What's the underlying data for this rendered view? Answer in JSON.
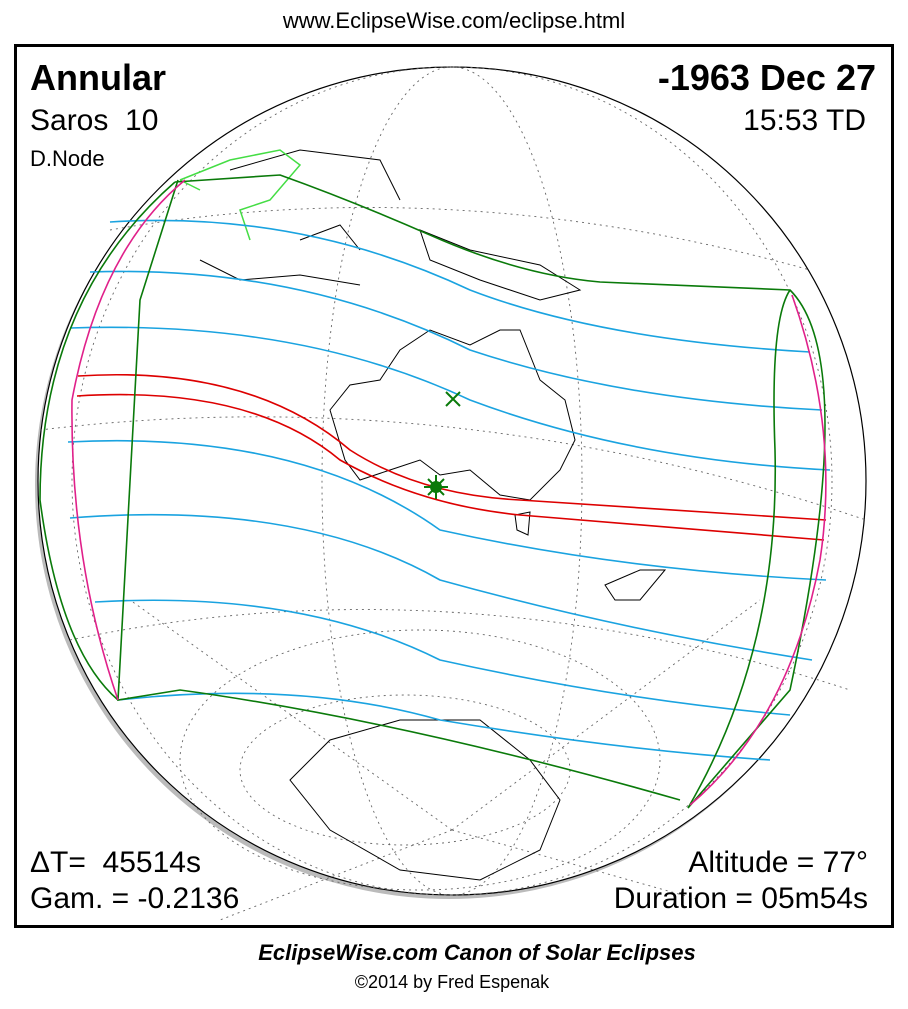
{
  "header": {
    "url": "www.EclipseWise.com/eclipse.html"
  },
  "eclipse": {
    "type": "Annular",
    "date": "-1963 Dec 27",
    "saros": "Saros  10",
    "time": "15:53 TD",
    "node": "D.Node",
    "delta_t": "ΔT=  45514s",
    "gamma": "Gam. = -0.2136",
    "altitude": "Altitude = 77°",
    "duration": "Duration = 05m54s"
  },
  "footer": {
    "title": "EclipseWise.com Canon of Solar Eclipses",
    "copyright": "©2014 by Fred Espenak"
  }
}
